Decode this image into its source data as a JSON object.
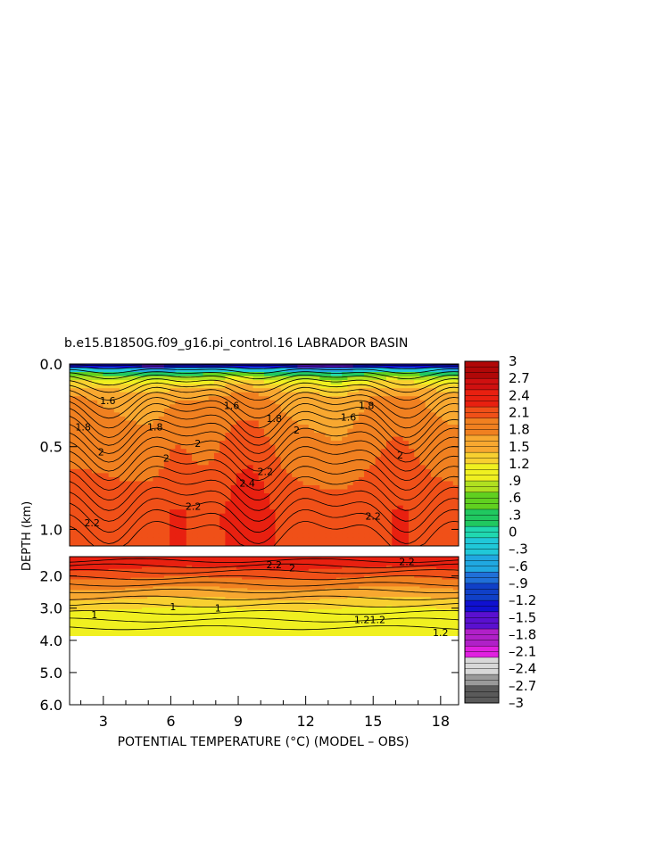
{
  "chart_data": {
    "type": "heatmap",
    "title": "b.e15.B1850G.f09_g16.pi_control.16 LABRADOR BASIN",
    "xlabel": "POTENTIAL TEMPERATURE (°C) (MODEL – OBS)",
    "ylabel": "DEPTH (km)",
    "xlim": [
      1.5,
      18.8
    ],
    "x_ticks": [
      3,
      6,
      9,
      12,
      15,
      18
    ],
    "x_tick_labels": [
      "3",
      "6",
      "9",
      "12",
      "15",
      "18"
    ],
    "upper_panel": {
      "ylim": [
        0.0,
        1.1
      ],
      "y_ticks": [
        0.0,
        0.5,
        1.0
      ],
      "y_tick_labels": [
        "0.0",
        "0.5",
        "1.0"
      ]
    },
    "lower_panel": {
      "ylim": [
        1.4,
        6.0
      ],
      "y_ticks": [
        2.0,
        3.0,
        4.0,
        5.0,
        6.0
      ],
      "y_tick_labels": [
        "2.0",
        "3.0",
        "4.0",
        "5.0",
        "6.0"
      ],
      "data_bottom_depth": 3.85
    },
    "colorbar": {
      "range": [
        -3,
        3
      ],
      "tick_values": [
        3,
        2.7,
        2.4,
        2.1,
        1.8,
        1.5,
        1.2,
        0.9,
        0.6,
        0.3,
        0,
        -0.3,
        -0.6,
        -0.9,
        -1.2,
        -1.5,
        -1.8,
        -2.1,
        -2.4,
        -2.7,
        -3
      ],
      "tick_labels": [
        "3",
        "2.7",
        "2.4",
        "2.1",
        "1.8",
        "1.5",
        "1.2",
        ".9",
        ".6",
        ".3",
        "0",
        "–.3",
        "–.6",
        "–.9",
        "–1.2",
        "–1.5",
        "–1.8",
        "–2.1",
        "–2.4",
        "–2.7",
        "–3"
      ]
    },
    "contour_labels": [
      {
        "text": "1.8",
        "x": 2.1,
        "depth": 0.38
      },
      {
        "text": "2",
        "x": 2.9,
        "depth": 0.53
      },
      {
        "text": "2.2",
        "x": 2.5,
        "depth": 0.96
      },
      {
        "text": "1.8",
        "x": 5.3,
        "depth": 0.38
      },
      {
        "text": "2",
        "x": 5.8,
        "depth": 0.57
      },
      {
        "text": "2",
        "x": 7.2,
        "depth": 0.48
      },
      {
        "text": "2.2",
        "x": 7.0,
        "depth": 0.86
      },
      {
        "text": "2.4",
        "x": 9.4,
        "depth": 0.72
      },
      {
        "text": "2.2",
        "x": 10.2,
        "depth": 0.65
      },
      {
        "text": "1.8",
        "x": 10.6,
        "depth": 0.33
      },
      {
        "text": "2",
        "x": 11.6,
        "depth": 0.4
      },
      {
        "text": "1.8",
        "x": 14.7,
        "depth": 0.25
      },
      {
        "text": "2",
        "x": 16.2,
        "depth": 0.55
      },
      {
        "text": "2.2",
        "x": 15.0,
        "depth": 0.92
      },
      {
        "text": "1.6",
        "x": 3.2,
        "depth": 0.22
      },
      {
        "text": "1.6",
        "x": 8.7,
        "depth": 0.25
      },
      {
        "text": "1.6",
        "x": 13.9,
        "depth": 0.32
      },
      {
        "text": "2.2",
        "x": 10.6,
        "depth": 1.65
      },
      {
        "text": "2.2",
        "x": 16.5,
        "depth": 1.55
      },
      {
        "text": "2",
        "x": 11.4,
        "depth": 1.75
      },
      {
        "text": "1.2",
        "x": 14.5,
        "depth": 3.35
      },
      {
        "text": "1.2",
        "x": 15.2,
        "depth": 3.35
      },
      {
        "text": "1.2",
        "x": 18.0,
        "depth": 3.75
      },
      {
        "text": "1",
        "x": 2.6,
        "depth": 3.2
      },
      {
        "text": "1",
        "x": 6.1,
        "depth": 2.95
      },
      {
        "text": "1",
        "x": 8.1,
        "depth": 3.0
      }
    ]
  },
  "colors": {
    "colorbar_stops": [
      "#5a5a5a",
      "#9a9a9a",
      "#d8d8d8",
      "#e020e0",
      "#b020c8",
      "#5a10d0",
      "#1010d0",
      "#1040c8",
      "#2070d8",
      "#20a8e0",
      "#20c8d8",
      "#20d8b0",
      "#20c860",
      "#60d020",
      "#b0e020",
      "#f0f020",
      "#f8d030",
      "#f8a830",
      "#f08020",
      "#f05018",
      "#e82010",
      "#d01010",
      "#b00808"
    ],
    "contour_line": "#000000"
  }
}
